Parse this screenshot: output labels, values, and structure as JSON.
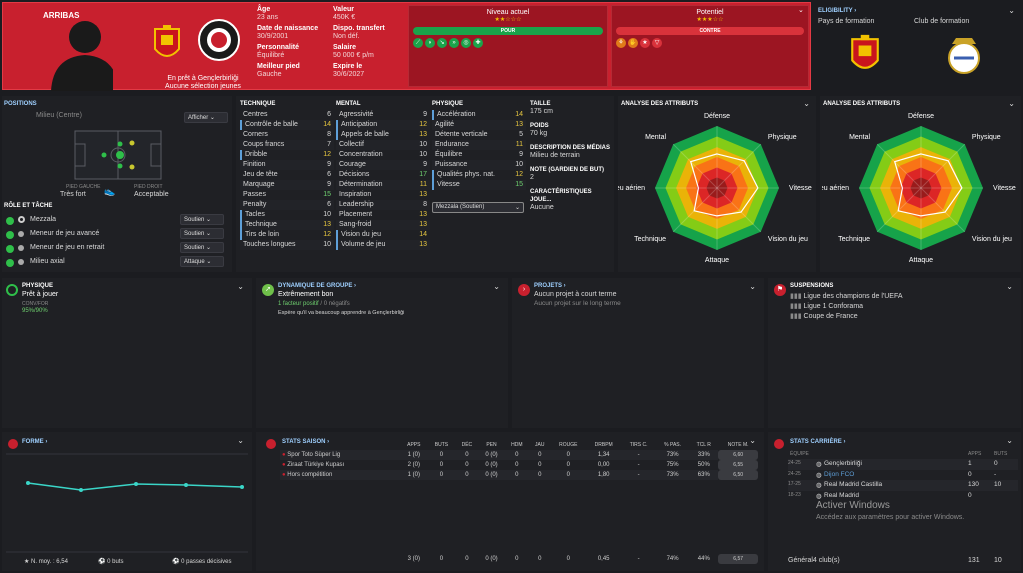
{
  "player": {
    "name": "ARRIBAS",
    "loan_note": "En prêt à Gençlerbirliği",
    "youth_note": "Aucune sélection jeunes",
    "age_label": "Âge",
    "age": "23 ans",
    "dob_label": "Date de naissance",
    "dob": "30/9/2001",
    "personality_label": "Personnalité",
    "personality": "Équilibré",
    "foot_label": "Meilleur pied",
    "foot": "Gauche",
    "value_label": "Valeur",
    "value": "450K €",
    "transfer_label": "Dispo. transfert",
    "transfer": "Non déf.",
    "salary_label": "Salaire",
    "salary": "50 000 € p/m",
    "expiry_label": "Expire le",
    "expiry": "30/6/2027"
  },
  "ratings": {
    "current_label": "Niveau actuel",
    "current_stars": "★★☆☆☆",
    "potential_label": "Potentiel",
    "potential_stars": "★★★☆☆",
    "pour": "POUR",
    "contre": "CONTRE"
  },
  "eligibility": {
    "title": "ELIGIBILITY ›",
    "country_label": "Pays de formation",
    "club_label": "Club de formation"
  },
  "positions": {
    "title": "POSITIONS",
    "pos": "Milieu (Centre)",
    "show": "Afficher",
    "left_foot_label": "PIED GAUCHE",
    "left_foot": "Très fort",
    "right_foot_label": "PIED DROIT",
    "right_foot": "Acceptable",
    "roles_title": "RÔLE ET TÂCHE",
    "roles": [
      {
        "name": "Mezzala",
        "duty": "Soutien"
      },
      {
        "name": "Meneur de jeu avancé",
        "duty": "Soutien"
      },
      {
        "name": "Meneur de jeu en retrait",
        "duty": "Soutien"
      },
      {
        "name": "Milieu axial",
        "duty": "Attaque"
      }
    ]
  },
  "attrs": {
    "technique_title": "TECHNIQUE",
    "technique": [
      [
        "Centres",
        "6"
      ],
      [
        "Contrôle de balle",
        "14"
      ],
      [
        "Corners",
        "8"
      ],
      [
        "Coups francs",
        "7"
      ],
      [
        "Dribble",
        "12"
      ],
      [
        "Finition",
        "9"
      ],
      [
        "Jeu de tête",
        "6"
      ],
      [
        "Marquage",
        "9"
      ],
      [
        "Passes",
        "15"
      ],
      [
        "Penalty",
        "6"
      ],
      [
        "Tacles",
        "10"
      ],
      [
        "Technique",
        "13"
      ],
      [
        "Tirs de loin",
        "12"
      ],
      [
        "Touches longues",
        "10"
      ]
    ],
    "mental_title": "MENTAL",
    "mental": [
      [
        "Agressivité",
        "9"
      ],
      [
        "Anticipation",
        "12"
      ],
      [
        "Appels de balle",
        "13"
      ],
      [
        "Collectif",
        "10"
      ],
      [
        "Concentration",
        "10"
      ],
      [
        "Courage",
        "9"
      ],
      [
        "Décisions",
        "17"
      ],
      [
        "Détermination",
        "11"
      ],
      [
        "Inspiration",
        "13"
      ],
      [
        "Leadership",
        "8"
      ],
      [
        "Placement",
        "13"
      ],
      [
        "Sang-froid",
        "13"
      ],
      [
        "Vision du jeu",
        "14"
      ],
      [
        "Volume de jeu",
        "13"
      ]
    ],
    "physique_title": "PHYSIQUE",
    "physique": [
      [
        "Accélération",
        "14"
      ],
      [
        "Agilité",
        "13"
      ],
      [
        "Détente verticale",
        "5"
      ],
      [
        "Endurance",
        "11"
      ],
      [
        "Équilibre",
        "9"
      ],
      [
        "Puissance",
        "10"
      ],
      [
        "Qualités phys. nat.",
        "12"
      ],
      [
        "Vitesse",
        "15"
      ]
    ],
    "role_select": "Mezzala (Soutien)"
  },
  "info": {
    "height_label": "TAILLE",
    "height": "175 cm",
    "weight_label": "POIDS",
    "weight": "70 kg",
    "media_label": "DESCRIPTION DES MÉDIAS",
    "media": "Milieu de terrain",
    "gk_label": "NOTE (GARDIEN DE BUT)",
    "gk": "2",
    "traits_label": "CARACTÉRISTIQUES JOUE...",
    "traits": "Aucune"
  },
  "radar": {
    "title": "ANALYSE DES ATTRIBUTS",
    "labels": [
      "Défense",
      "Physique",
      "Vitesse",
      "Vision du jeu",
      "Attaque",
      "Technique",
      "Jeu aérien",
      "Mental"
    ]
  },
  "status": {
    "phys_title": "PHYSIQUE",
    "phys_val": "Prêt à jouer",
    "cond_label": "CONV/FOR",
    "cond": "95%/90%",
    "dyn_title": "DYNAMIQUE DE GROUPE ›",
    "dyn_val": "Extrêmement bon",
    "dyn_pos": "1 facteur positif",
    "dyn_neg": " / 0 négatifs",
    "dyn_note": "Espère qu'il va beaucoup apprendre à Gençlerbirliği",
    "proj_title": "PROJETS ›",
    "proj1": "Aucun projet à court terme",
    "proj2": "Aucun projet sur le long terme",
    "susp_title": "SUSPENSIONS",
    "susp": [
      "Ligue des champions de l'UEFA",
      "Ligue 1 Conforama",
      "Coupe de France"
    ]
  },
  "form": {
    "title": "FORME ›",
    "avg": "N. moy. : 6,54",
    "goals": "0 buts",
    "assists": "0 passes décisives"
  },
  "season": {
    "title": "STATS SAISON ›",
    "cols": [
      "APPS",
      "BUTS",
      "DÉC",
      "PEN",
      "HDM",
      "JAU",
      "ROUGE",
      "DRBPM",
      "TIRS C.",
      "% PAS.",
      "TCL R",
      "NOTE M."
    ],
    "rows": [
      {
        "comp": "Spor Toto Süper Lig",
        "v": [
          "1 (0)",
          "0",
          "0",
          "0 (0)",
          "0",
          "0",
          "0",
          "1,34",
          "-",
          "73%",
          "33%",
          "6,60"
        ]
      },
      {
        "comp": "Ziraat Türkiye Kupası",
        "v": [
          "2 (0)",
          "0",
          "0",
          "0 (0)",
          "0",
          "0",
          "0",
          "0,00",
          "-",
          "75%",
          "50%",
          "6,55"
        ]
      },
      {
        "comp": "Hors compétition",
        "v": [
          "1 (0)",
          "0",
          "0",
          "0 (0)",
          "0",
          "0",
          "0",
          "1,80",
          "-",
          "73%",
          "63%",
          "6,50"
        ]
      }
    ],
    "total": [
      "3 (0)",
      "0",
      "0",
      "0 (0)",
      "0",
      "0",
      "0",
      "0,45",
      "-",
      "74%",
      "44%",
      "6,57"
    ]
  },
  "career": {
    "title": "STATS CARRIÈRE ›",
    "team_col": "ÉQUIPE",
    "apps_col": "APPS",
    "goals_col": "BUTS",
    "rows": [
      {
        "season": "24-25",
        "club": "Gençlerbirliği",
        "apps": "1",
        "goals": "0"
      },
      {
        "season": "24-25",
        "club": "Dijon FCO",
        "apps": "0",
        "goals": "-"
      },
      {
        "season": "17-25",
        "club": "Real Madrid Castilla",
        "apps": "130",
        "goals": "10"
      },
      {
        "season": "18-23",
        "club": "Real Madrid",
        "apps": "0",
        "goals": ""
      }
    ],
    "total_label": "Général4 club(s)",
    "total_apps": "131",
    "total_goals": "10"
  },
  "windows": {
    "line1": "Activer Windows",
    "line2": "Accédez aux paramètres pour activer Windows."
  },
  "colors": {
    "header": "#c8202e",
    "accent": "#5e9fd8",
    "pour": "#1aa34a",
    "contre": "#d9323b"
  }
}
